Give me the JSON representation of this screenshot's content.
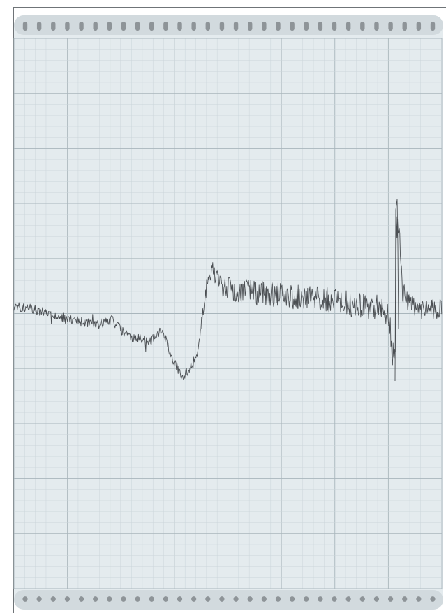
{
  "image": {
    "subject": "chart-recorder-paper",
    "colors": {
      "background": "#ffffff",
      "frame": "#6f7478",
      "paper": "#e4ebee",
      "band": "#d2dade",
      "hole": "#8e9498",
      "grid_minor": "#cbd5da",
      "grid_major": "#a9b6bc",
      "trace": "#4b4f53"
    },
    "sprocket_holes_per_edge": 30,
    "grid_columns_major": 8,
    "grid_rows_major": 10,
    "minor_per_major": 5
  }
}
